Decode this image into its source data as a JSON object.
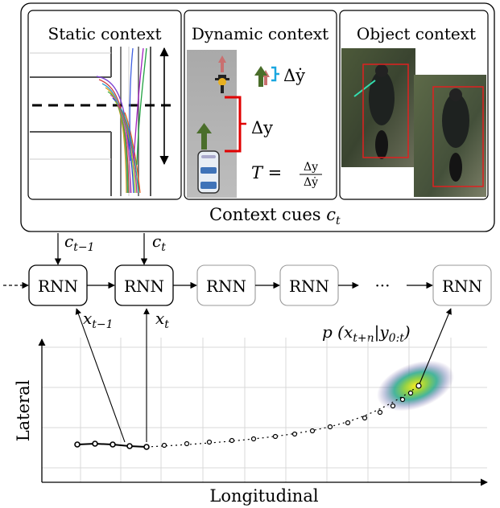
{
  "context_panel": {
    "caption": "Context cues ",
    "caption_var": "c",
    "caption_sub": "t",
    "static": {
      "title": "Static context"
    },
    "dynamic": {
      "title": "Dynamic context",
      "delta_ydot": "Δẏ",
      "delta_y": "Δy",
      "ttc_lhs": "T =",
      "ttc_num": "Δy",
      "ttc_den": "Δẏ"
    },
    "object": {
      "title": "Object context"
    }
  },
  "rnn_chain": {
    "cells": [
      "RNN",
      "RNN",
      "RNN",
      "RNN",
      "RNN"
    ],
    "ellipsis": "···",
    "inputs": [
      {
        "var": "c",
        "sub": "t−1"
      },
      {
        "var": "c",
        "sub": "t"
      }
    ],
    "states": [
      {
        "var": "x",
        "sub": "t−1"
      },
      {
        "var": "x",
        "sub": "t"
      }
    ],
    "prediction": {
      "text": "p (x",
      "sub1": "t+n",
      "mid": "|y",
      "sub2": "0:t",
      "close": ")"
    }
  },
  "trajectory_plot": {
    "xlabel": "Longitudinal",
    "ylabel": "Lateral"
  },
  "colors": {
    "lane_line": "#555555",
    "red_marker": "#e00000",
    "cyan_marker": "#1aa7e0",
    "arrow_green": "#4a6e2a",
    "bbox": "#e02020",
    "grid": "#d8d8d8"
  }
}
